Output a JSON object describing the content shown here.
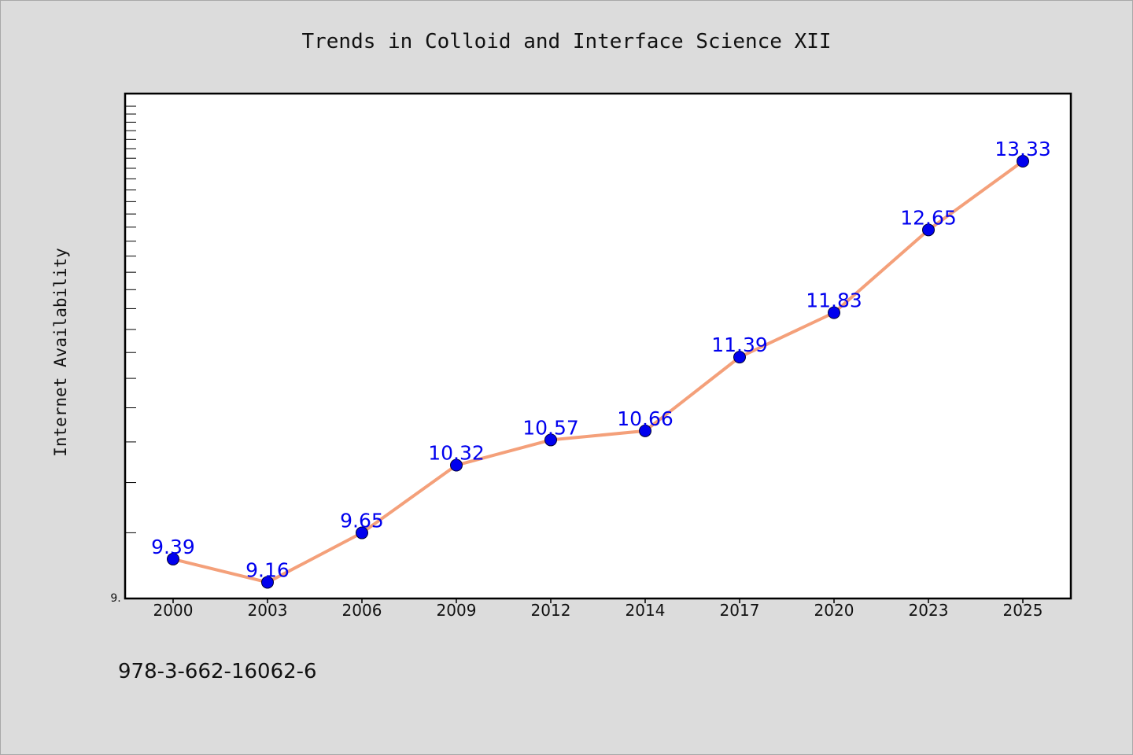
{
  "chart_data": {
    "type": "line",
    "title": "Trends in Colloid and Interface Science XII",
    "ylabel": "Internet Availability",
    "xlabel": "",
    "categories": [
      "2000",
      "2003",
      "2006",
      "2009",
      "2012",
      "2014",
      "2017",
      "2020",
      "2023",
      "2025"
    ],
    "series": [
      {
        "values": [
          9.39,
          9.16,
          9.65,
          10.32,
          10.57,
          10.66,
          11.39,
          11.83,
          12.65,
          13.33
        ]
      }
    ],
    "data_labels": [
      "9.39",
      "9.16",
      "9.65",
      "10.32",
      "10.57",
      "10.66",
      "11.39",
      "11.83",
      "12.65",
      "13.33"
    ],
    "ylim": [
      9.0,
      14.0
    ],
    "y_tick_label": "9.",
    "grid": false,
    "legend": "none",
    "line_color": "#f4a07a",
    "marker_color": "#0000ee",
    "label_color": "#0000ee"
  },
  "footer_text": "978-3-662-16062-6"
}
